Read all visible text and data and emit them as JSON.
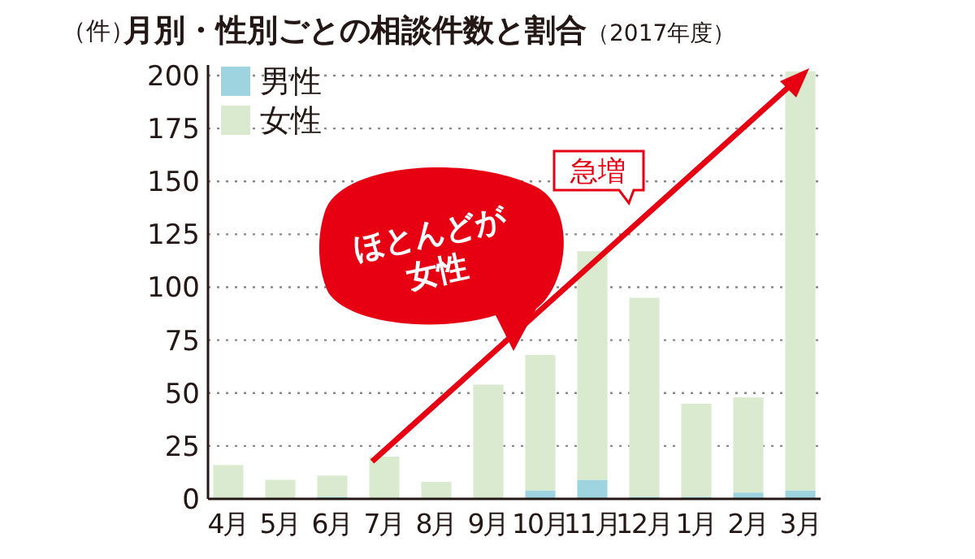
{
  "chart_data": {
    "type": "bar",
    "title": "月別・性別ごとの相談件数と割合",
    "subtitle": "（2017年度）",
    "ylabel": "（件）",
    "categories": [
      "4月",
      "5月",
      "6月",
      "7月",
      "8月",
      "9月",
      "10月",
      "11月",
      "12月",
      "1月",
      "2月",
      "3月"
    ],
    "stacked": true,
    "series": [
      {
        "name": "男性",
        "color": "#9dd4df",
        "values": [
          0,
          0,
          1,
          0,
          0,
          0,
          4,
          9,
          1,
          1,
          3,
          4
        ]
      },
      {
        "name": "女性",
        "color": "#d9eace",
        "values": [
          16,
          9,
          10,
          20,
          8,
          54,
          64,
          108,
          94,
          44,
          45,
          198
        ]
      }
    ],
    "ylim": [
      0,
      205
    ],
    "yticks": [
      0,
      25,
      50,
      75,
      100,
      125,
      150,
      175,
      200
    ],
    "grid": "y",
    "legend": "top left",
    "annotations": [
      "ほとんどが\n女性",
      "急増"
    ]
  }
}
